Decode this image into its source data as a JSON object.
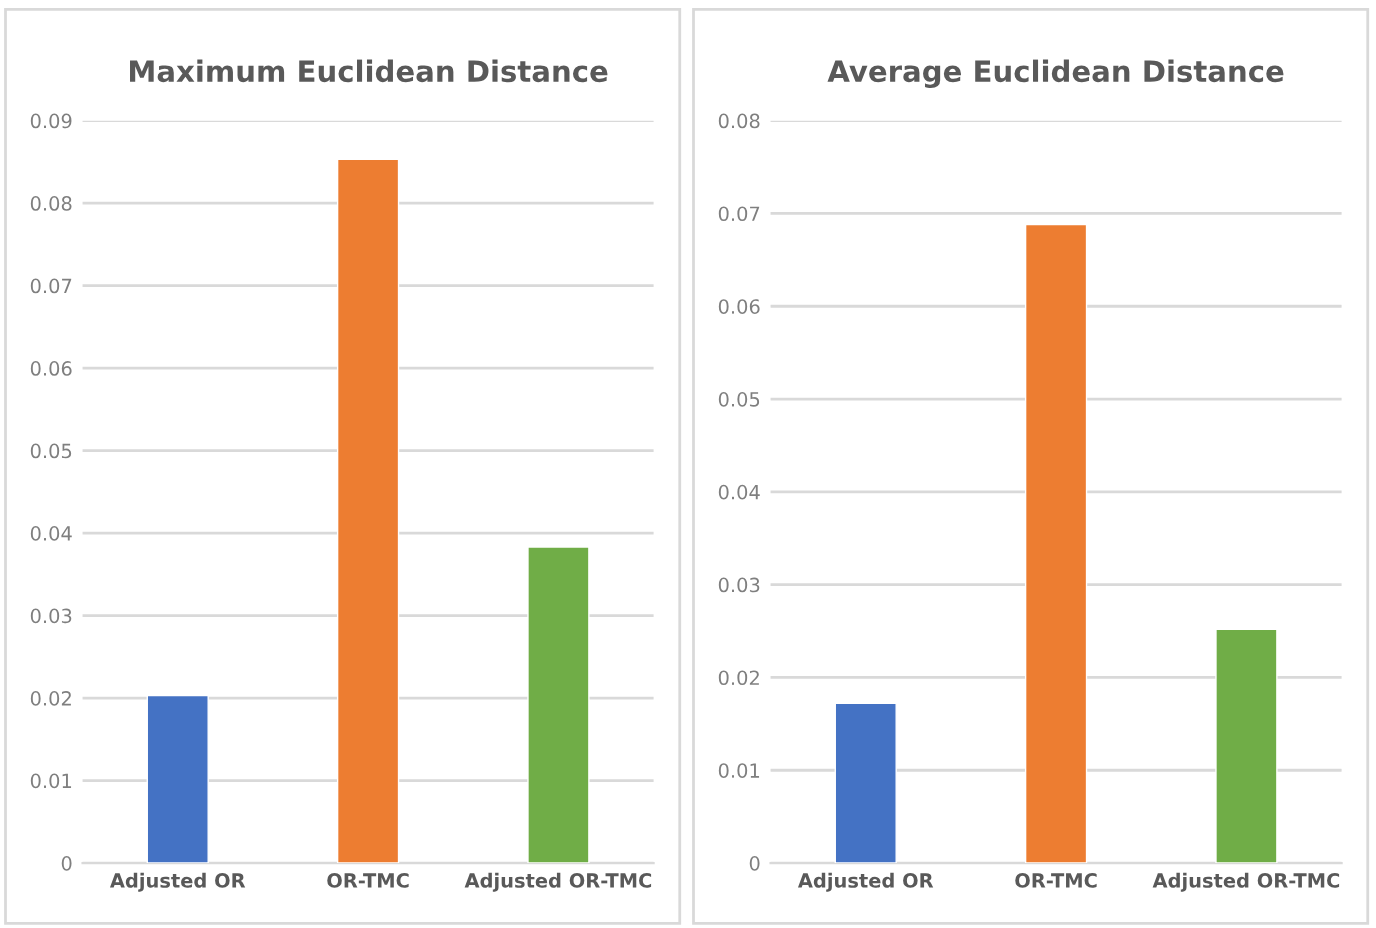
{
  "chart_data": [
    {
      "type": "bar",
      "title": "Maximum Euclidean Distance",
      "categories": [
        "Adjusted OR",
        "OR-TMC",
        "Adjusted OR-TMC"
      ],
      "values": [
        0.0203,
        0.0853,
        0.0383
      ],
      "colors": [
        "#4472c4",
        "#ed7d31",
        "#70ad47"
      ],
      "ylim": [
        0,
        0.09
      ],
      "yticks": [
        0,
        0.01,
        0.02,
        0.03,
        0.04,
        0.05,
        0.06,
        0.07,
        0.08,
        0.09
      ],
      "grid": "y"
    },
    {
      "type": "bar",
      "title": "Average Euclidean Distance",
      "categories": [
        "Adjusted OR",
        "OR-TMC",
        "Adjusted OR-TMC"
      ],
      "values": [
        0.0172,
        0.0688,
        0.0252
      ],
      "colors": [
        "#4472c4",
        "#ed7d31",
        "#70ad47"
      ],
      "ylim": [
        0,
        0.08
      ],
      "yticks": [
        0,
        0.01,
        0.02,
        0.03,
        0.04,
        0.05,
        0.06,
        0.07,
        0.08
      ],
      "grid": "y"
    }
  ]
}
